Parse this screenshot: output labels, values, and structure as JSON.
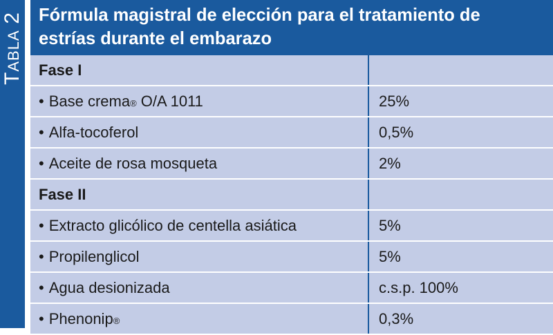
{
  "side_label": {
    "first": "T",
    "rest": "ABLA",
    "number": "2"
  },
  "title": "Fórmula magistral de elección para el tratamiento de estrías durante el embarazo",
  "rows": [
    {
      "kind": "phase",
      "label": "Fase I",
      "value": ""
    },
    {
      "kind": "item",
      "label": "Base crema",
      "sup": "®",
      "suffix": " O/A 1011",
      "value": "25%"
    },
    {
      "kind": "item",
      "label": "Alfa-tocoferol",
      "sup": "",
      "suffix": "",
      "value": "0,5%"
    },
    {
      "kind": "item",
      "label": "Aceite de rosa mosqueta",
      "sup": "",
      "suffix": "",
      "value": "2%"
    },
    {
      "kind": "phase",
      "label": "Fase II",
      "value": ""
    },
    {
      "kind": "item",
      "label": "Extracto glicólico de centella asiática",
      "sup": "",
      "suffix": "",
      "value": "5%"
    },
    {
      "kind": "item",
      "label": "Propilenglicol",
      "sup": "",
      "suffix": "",
      "value": "5%"
    },
    {
      "kind": "item",
      "label": "Agua desionizada",
      "sup": "",
      "suffix": "",
      "value": "c.s.p. 100%"
    },
    {
      "kind": "item",
      "label": "Phenonip",
      "sup": "®",
      "suffix": "",
      "value": "0,3%"
    }
  ],
  "bullet": "•",
  "colors": {
    "header_blue": "#1a5a9e",
    "row_fill": "#c3cce6",
    "text": "#1a1a1a"
  }
}
